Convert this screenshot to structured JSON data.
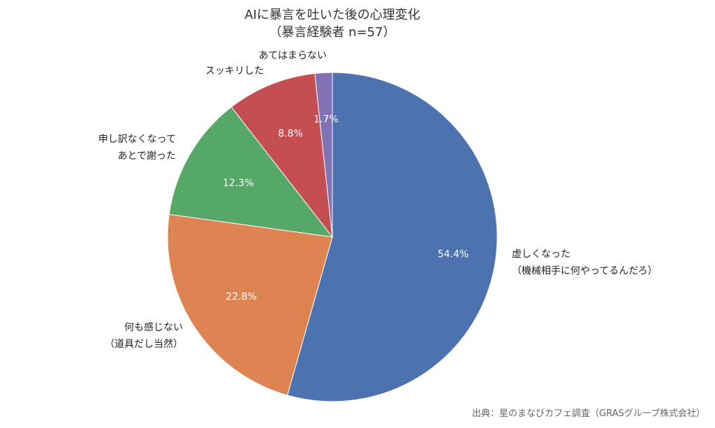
{
  "chart_data": {
    "type": "pie",
    "title": "AIに暴言を吐いた後の心理変化",
    "subtitle": "（暴言経験者 n=57）",
    "slices": [
      {
        "label": [
          "虚しくなった",
          "（機械相手に何やってるんだろ）"
        ],
        "value": 54.4,
        "value_label": "54.4%",
        "color": "#4C72B0"
      },
      {
        "label": [
          "何も感じない",
          "（道具だし当然）"
        ],
        "value": 22.8,
        "value_label": "22.8%",
        "color": "#DD8452"
      },
      {
        "label": [
          "申し訳なくなって",
          "あとで謝った"
        ],
        "value": 12.3,
        "value_label": "12.3%",
        "color": "#55A868"
      },
      {
        "label": [
          "スッキリした"
        ],
        "value": 8.8,
        "value_label": "8.8%",
        "color": "#C44E52"
      },
      {
        "label": [
          "あてはまらない"
        ],
        "value": 1.7,
        "value_label": "1.7%",
        "color": "#8172B3"
      }
    ],
    "start": "top",
    "direction": "clockwise",
    "source": "出典：星のまなびカフェ調査（GRASグループ株式会社）"
  }
}
